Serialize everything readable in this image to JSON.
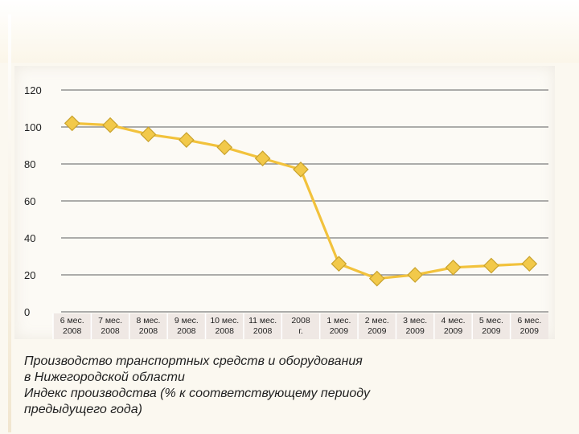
{
  "chart_data": {
    "type": "line",
    "categories": [
      "6 мес. 2008",
      "7 мес. 2008",
      "8 мес. 2008",
      "9 мес. 2008",
      "10 мес. 2008",
      "11 мес. 2008",
      "2008 г.",
      "1 мес. 2009",
      "2 мес. 2009",
      "3 мес. 2009",
      "4 мес. 2009",
      "5 мес. 2009",
      "6 мес. 2009"
    ],
    "category_lines": [
      [
        "6 мес.",
        "2008"
      ],
      [
        "7 мес.",
        "2008"
      ],
      [
        "8 мес.",
        "2008"
      ],
      [
        "9 мес.",
        "2008"
      ],
      [
        "10 мес.",
        "2008"
      ],
      [
        "11 мес.",
        "2008"
      ],
      [
        "2008",
        "г."
      ],
      [
        "1 мес.",
        "2009"
      ],
      [
        "2 мес.",
        "2009"
      ],
      [
        "3 мес.",
        "2009"
      ],
      [
        "4 мес.",
        "2009"
      ],
      [
        "5 мес.",
        "2009"
      ],
      [
        "6 мес.",
        "2009"
      ]
    ],
    "series": [
      {
        "name": "Индекс производства",
        "values": [
          102,
          101,
          96,
          93,
          89,
          83,
          77,
          26,
          18,
          20,
          24,
          25,
          26
        ],
        "color": "#f2c23c",
        "marker_fill": "#f2c94a",
        "marker_stroke": "#c9a22c"
      }
    ],
    "yticks": [
      "0",
      "20",
      "40",
      "60",
      "80",
      "100",
      "120"
    ],
    "ylim": [
      0,
      120
    ],
    "grid": true,
    "title": "",
    "xlabel": "",
    "ylabel": ""
  },
  "caption": {
    "line1": "Производство транспортных средств и оборудования",
    "line2": "в Нижегородской области",
    "line3": "Индекс производства (% к соответствующему периоду",
    "line4": "предыдущего года)"
  },
  "colors": {
    "grid": "#7d7d7d",
    "axis": "#555555",
    "text": "#1f1f1f"
  }
}
